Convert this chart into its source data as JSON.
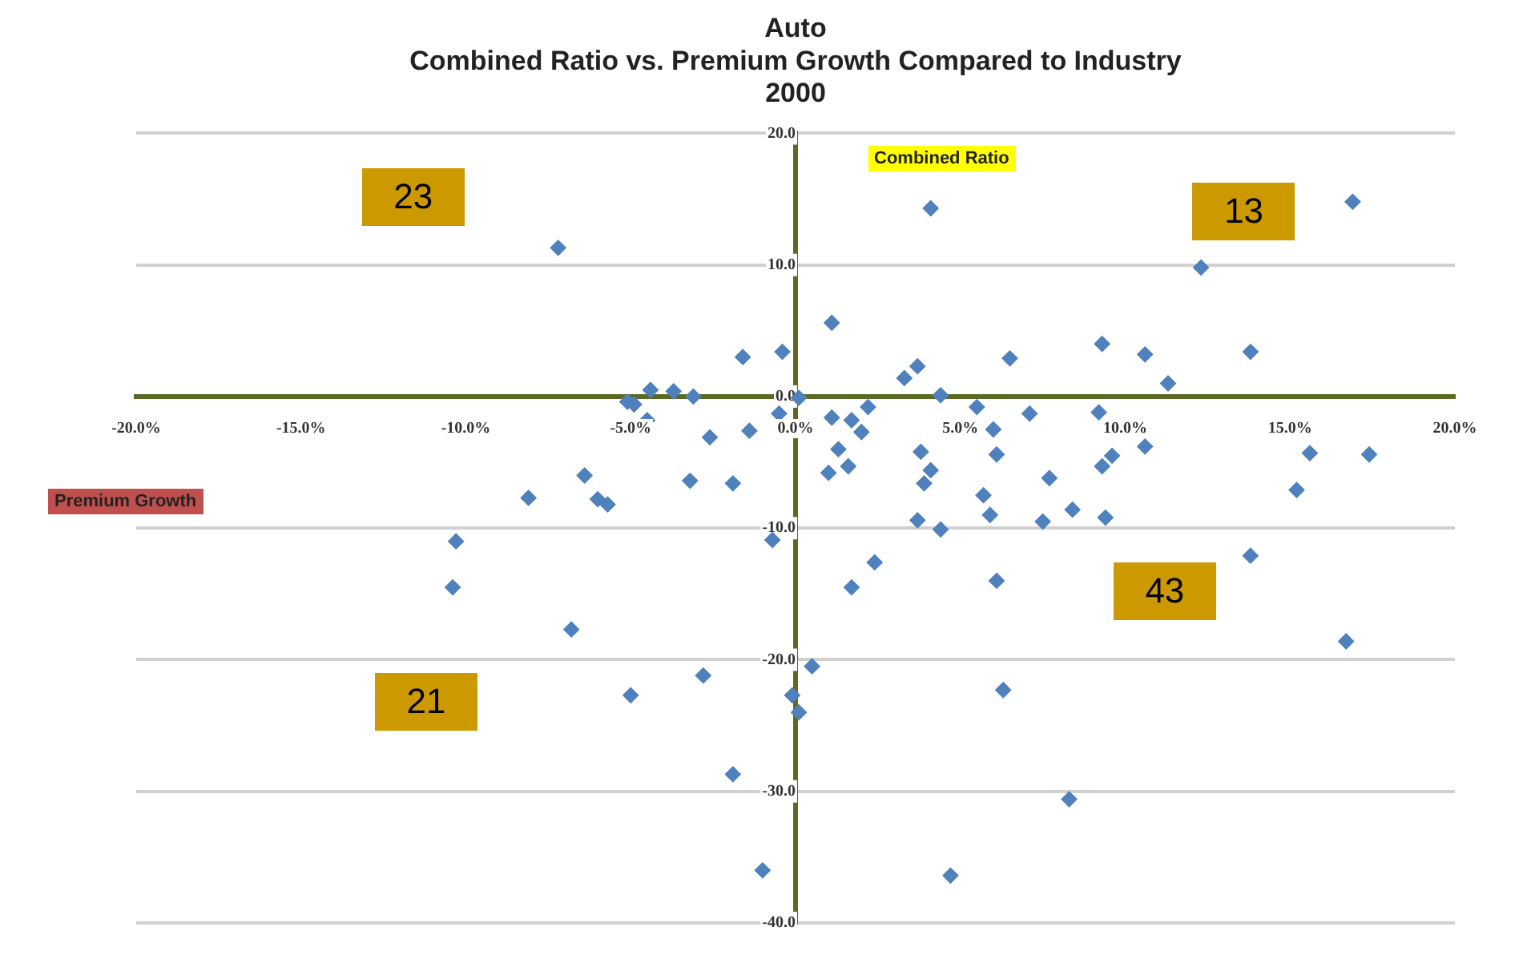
{
  "chart_data": {
    "type": "scatter",
    "title": "Auto\nCombined Ratio vs. Premium Growth Compared to Industry\n2000",
    "xlabel": "Premium Growth",
    "ylabel": "Combined Ratio",
    "annotations": [
      "23",
      "13",
      "21",
      "43"
    ],
    "x": [
      -7.2,
      4.1,
      16.9,
      12.3,
      1.1,
      -1.6,
      -0.4,
      9.3,
      10.6,
      13.8,
      6.5,
      11.3,
      3.7,
      3.3,
      4.4,
      0.1,
      -4.4,
      -3.7,
      -3.1,
      -5.1,
      -4.9,
      -4.5,
      -2.6,
      -1.4,
      -0.5,
      -6.4,
      -3.2,
      -1.9,
      -8.1,
      -6.0,
      -5.7,
      1.1,
      1.7,
      2.0,
      2.2,
      1.3,
      1.0,
      1.6,
      3.8,
      4.1,
      3.9,
      3.7,
      4.4,
      5.5,
      6.0,
      6.1,
      5.7,
      5.9,
      7.1,
      7.7,
      7.5,
      8.4,
      9.2,
      9.4,
      9.3,
      9.6,
      10.6,
      15.6,
      15.2,
      17.4,
      1.7,
      2.4,
      6.1,
      13.8,
      16.7,
      0.5,
      -0.1,
      0.1,
      6.3,
      8.3,
      4.7,
      -10.3,
      -10.4,
      -6.8,
      -5.0,
      -2.8,
      -1.9,
      -1.0,
      -0.7
    ],
    "values": [
      11.3,
      14.3,
      14.8,
      9.8,
      5.6,
      3.0,
      3.4,
      4.0,
      3.2,
      3.4,
      2.9,
      1.0,
      2.3,
      1.4,
      0.1,
      -0.1,
      0.5,
      0.4,
      0.0,
      -0.4,
      -0.6,
      -1.8,
      -3.1,
      -2.6,
      -1.3,
      -6.0,
      -6.4,
      -6.6,
      -7.7,
      -7.8,
      -8.2,
      -1.6,
      -1.8,
      -2.7,
      -0.8,
      -4.0,
      -5.8,
      -5.3,
      -4.2,
      -5.6,
      -6.6,
      -9.4,
      -10.1,
      -0.8,
      -2.5,
      -4.4,
      -7.5,
      -9.0,
      -1.3,
      -6.2,
      -9.5,
      -8.6,
      -1.2,
      -9.2,
      -5.3,
      -4.5,
      -3.8,
      -4.3,
      -7.1,
      -4.4,
      -14.5,
      -12.6,
      -14.0,
      -12.1,
      -18.6,
      -20.5,
      -22.7,
      -24.0,
      -22.3,
      -30.6,
      -36.4,
      -11.0,
      -14.5,
      -17.7,
      -22.7,
      -21.2,
      -28.7,
      -36.0,
      -10.9
    ],
    "color": "#4f81bd",
    "marker": "diamond",
    "grid": "y",
    "xlim": [
      -20,
      20
    ],
    "xticks": [
      {
        "value": -20,
        "label": "-20.0%"
      },
      {
        "value": -15,
        "label": "-15.0%"
      },
      {
        "value": -10,
        "label": "-10.0%"
      },
      {
        "value": -5,
        "label": "-5.0%"
      },
      {
        "value": 0,
        "label": "0.0%"
      },
      {
        "value": 5,
        "label": "5.0%"
      },
      {
        "value": 10,
        "label": "10.0%"
      },
      {
        "value": 15,
        "label": "15.0%"
      },
      {
        "value": 20,
        "label": "20.0%"
      }
    ],
    "ylim": [
      -40,
      20
    ],
    "yticks": [
      {
        "value": -40,
        "label": "-40.0"
      },
      {
        "value": -30,
        "label": "-30.0"
      },
      {
        "value": -20,
        "label": "-20.0"
      },
      {
        "value": -10,
        "label": "-10.0"
      },
      {
        "value": 0,
        "label": "0.0"
      },
      {
        "value": 10,
        "label": "10.0"
      },
      {
        "value": 20,
        "label": "20.0"
      }
    ]
  }
}
